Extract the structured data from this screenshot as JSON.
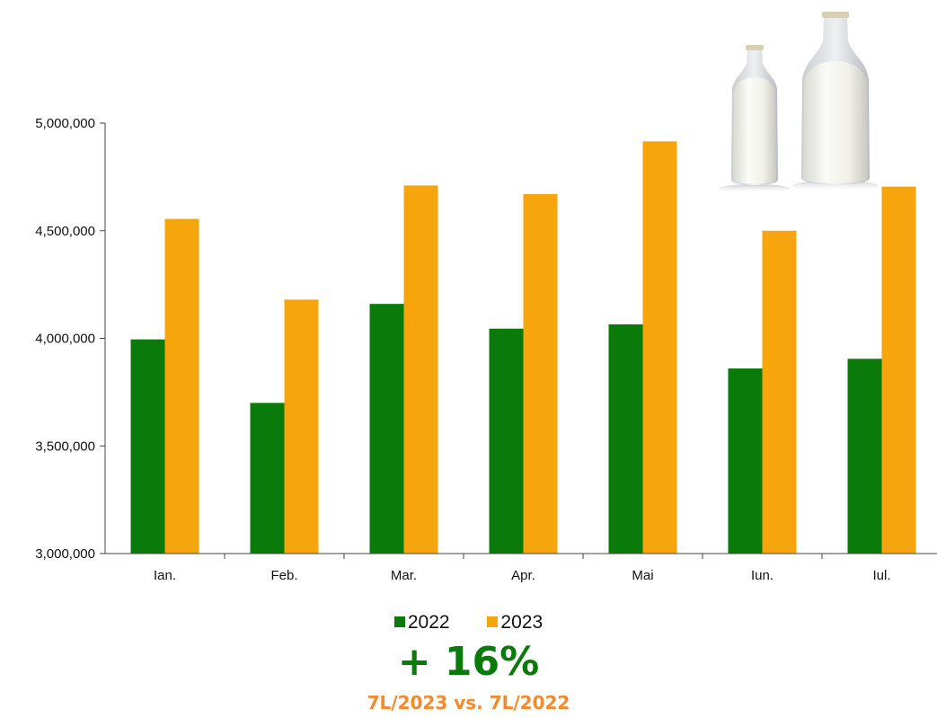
{
  "colors": {
    "series_2022": "#0a7a0a",
    "series_2023": "#f6a60c",
    "big_stat": "#0a7a0a",
    "sub_stat": "#f28a2e"
  },
  "chart_data": {
    "type": "bar",
    "categories": [
      "Ian.",
      "Feb.",
      "Mar.",
      "Apr.",
      "Mai",
      "Iun.",
      "Iul."
    ],
    "series": [
      {
        "name": "2022",
        "values": [
          3995000,
          3700000,
          4160000,
          4045000,
          4065000,
          3860000,
          3905000
        ]
      },
      {
        "name": "2023",
        "values": [
          4555000,
          4180000,
          4710000,
          4670000,
          4915000,
          4500000,
          4705000
        ]
      }
    ],
    "ylim": [
      3000000,
      5000000
    ],
    "yticks": [
      3000000,
      3500000,
      4000000,
      4500000,
      5000000
    ],
    "ytick_labels": [
      "3,000,000",
      "3,500,000",
      "4,000,000",
      "4,500,000",
      "5,000,000"
    ],
    "grid": false,
    "legend_position": "bottom"
  },
  "legend": {
    "label_2022": "2022",
    "label_2023": "2023"
  },
  "summary": {
    "change": "+ 16%",
    "comparison": "7L/2023 vs. 7L/2022"
  },
  "decoration": {
    "icon": "milk-bottles-icon"
  }
}
